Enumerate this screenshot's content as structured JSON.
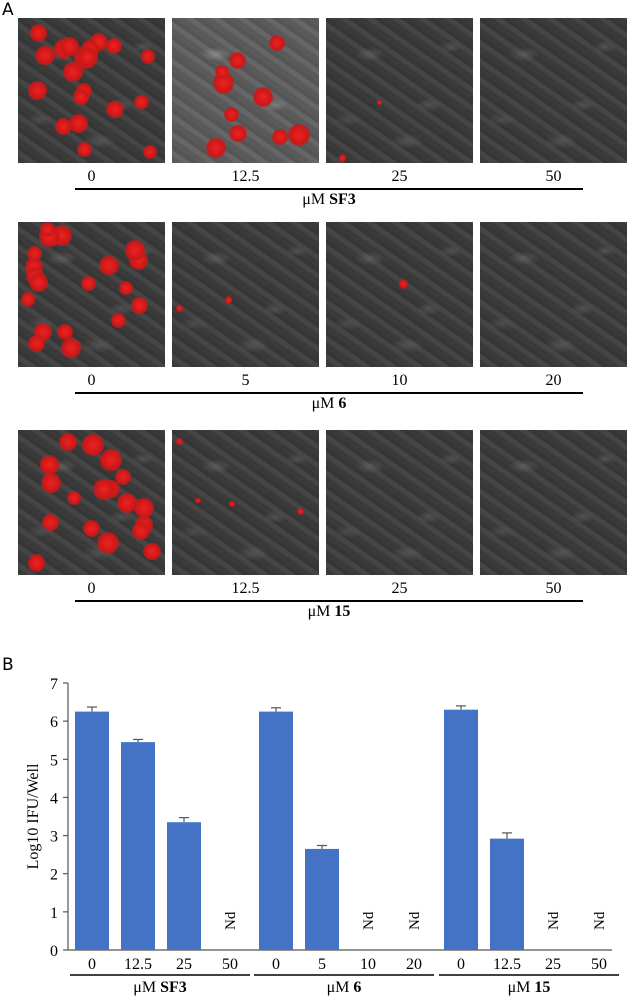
{
  "panel_a": {
    "letter": "A",
    "groups": [
      {
        "unit": "μM",
        "compound": "SF3",
        "concentrations": [
          "0",
          "12.5",
          "25",
          "50"
        ],
        "red_signal": [
          0.9,
          0.45,
          0.1,
          0.0
        ]
      },
      {
        "unit": "μM",
        "compound": "6",
        "concentrations": [
          "0",
          "5",
          "10",
          "20"
        ],
        "red_signal": [
          0.85,
          0.1,
          0.05,
          0.0
        ]
      },
      {
        "unit": "μM",
        "compound": "15",
        "concentrations": [
          "0",
          "12.5",
          "25",
          "50"
        ],
        "red_signal": [
          0.85,
          0.2,
          0.0,
          0.0
        ]
      }
    ]
  },
  "chart_data": {
    "type": "bar",
    "panel_letter": "B",
    "ylabel": "Log10 IFU/Well",
    "ylim": [
      0,
      7
    ],
    "yticks": [
      0,
      1,
      2,
      3,
      4,
      5,
      6,
      7
    ],
    "bar_color": "#4472c4",
    "groups": [
      {
        "unit": "μM",
        "compound": "SF3",
        "categories": [
          "0",
          "12.5",
          "25",
          "50"
        ],
        "values": [
          6.25,
          5.45,
          3.35,
          null
        ],
        "errors": [
          0.12,
          0.07,
          0.12,
          null
        ],
        "labels": [
          "",
          "",
          "",
          "Nd"
        ]
      },
      {
        "unit": "μM",
        "compound": "6",
        "categories": [
          "0",
          "5",
          "10",
          "20"
        ],
        "values": [
          6.25,
          2.65,
          null,
          null
        ],
        "errors": [
          0.1,
          0.09,
          null,
          null
        ],
        "labels": [
          "",
          "",
          "Nd",
          "Nd"
        ]
      },
      {
        "unit": "μM",
        "compound": "15",
        "categories": [
          "0",
          "12.5",
          "25",
          "50"
        ],
        "values": [
          6.3,
          2.92,
          null,
          null
        ],
        "errors": [
          0.1,
          0.15,
          null,
          null
        ],
        "labels": [
          "",
          "",
          "Nd",
          "Nd"
        ]
      }
    ]
  }
}
